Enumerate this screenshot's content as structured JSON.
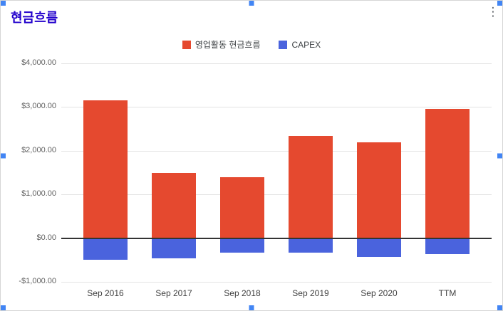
{
  "header": {
    "title": "현금흐름"
  },
  "window": {
    "menu_icon": "⋮"
  },
  "colors": {
    "title": "#2200cc",
    "handle": "#4285f4",
    "border": "#d6d6d6",
    "grid": "#e3e3e3",
    "zero_line": "#333333",
    "y_label": "#616161",
    "x_label": "#424242",
    "legend_text": "#3c4043",
    "menu_icon": "#5f6368",
    "background": "#ffffff"
  },
  "chart_data": {
    "type": "bar",
    "title": "현금흐름",
    "categories": [
      "Sep 2016",
      "Sep 2017",
      "Sep 2018",
      "Sep 2019",
      "Sep 2020",
      "TTM"
    ],
    "series": [
      {
        "name": "영업활동 현금흐름",
        "color": "#e5492f",
        "values": [
          3150,
          1500,
          1400,
          2340,
          2200,
          2950
        ]
      },
      {
        "name": "CAPEX",
        "color": "#4a63dd",
        "values": [
          -490,
          -470,
          -340,
          -330,
          -430,
          -370
        ]
      }
    ],
    "ylim": [
      -1000,
      4000
    ],
    "ytick_step": 1000,
    "ytick_labels": [
      "$4,000.00",
      "$3,000.00",
      "$2,000.00",
      "$1,000.00",
      "$0.00",
      "-$1,000.00"
    ],
    "grid": true,
    "legend_position": "top",
    "xlabel": "",
    "ylabel": ""
  }
}
